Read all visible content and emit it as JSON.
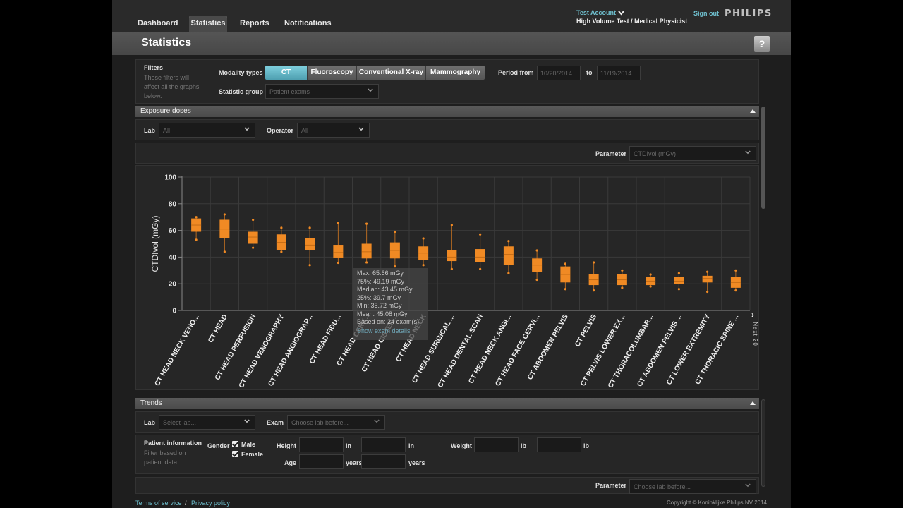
{
  "nav": {
    "tabs": [
      "Dashboard",
      "Statistics",
      "Reports",
      "Notifications"
    ],
    "account": "Test Account",
    "role": "High Volume Test / Medical Physicist",
    "signout": "Sign out",
    "logo": "PHILIPS"
  },
  "page": {
    "title": "Statistics",
    "help": "?"
  },
  "filters": {
    "title": "Filters",
    "hint": "These filters will affect all the graphs below.",
    "modality_label": "Modality types",
    "modalities": [
      "CT",
      "Fluoroscopy",
      "Conventional X-ray",
      "Mammography"
    ],
    "active_modality": "CT",
    "period_label": "Period from",
    "period_from": "10/20/2014",
    "period_to_label": "to",
    "period_to": "11/19/2014",
    "statgroup_label": "Statistic group",
    "statgroup_value": "Patient exams"
  },
  "exposure": {
    "title": "Exposure doses",
    "lab_label": "Lab",
    "lab_value": "All",
    "operator_label": "Operator",
    "operator_value": "All",
    "parameter_label": "Parameter",
    "parameter_value": "CTDIvol (mGy)"
  },
  "chart_data": {
    "type": "box",
    "ylabel": "CTDIvol (mGy)",
    "ylim": [
      0,
      100
    ],
    "yticks": [
      0,
      20,
      40,
      60,
      80,
      100
    ],
    "color": "#f08a24",
    "categories": [
      "CT HEAD NECK VENO...",
      "CT HEAD",
      "CT HEAD PERFUSION",
      "CT HEAD VENOGRAPHY",
      "CT HEAD ANGIOGRAP...",
      "CT HEAD FIDU...",
      "CT HEAD CERV...",
      "CT HEAD CISTER...",
      "CT HEAD NECK",
      "CT HEAD SURGICAL ...",
      "CT HEAD DENTAL SCAN",
      "CT HEAD NECK ANGI...",
      "CT HEAD FACE CERVI...",
      "CT ABDOMEN PELVIS",
      "CT PELVIS",
      "CT PELVIS LOWER EX...",
      "CT THORACOLUMBAR...",
      "CT ABDOMEN PELVIS ...",
      "CT LOWER EXTREMITY",
      "CT THORACIC SPINE ..."
    ],
    "boxes": [
      {
        "min": 53,
        "q1": 59,
        "median": 64,
        "q3": 69,
        "max": 70
      },
      {
        "min": 44,
        "q1": 54,
        "median": 61,
        "q3": 68,
        "max": 72
      },
      {
        "min": 47,
        "q1": 50,
        "median": 55,
        "q3": 59,
        "max": 68
      },
      {
        "min": 44,
        "q1": 45,
        "median": 51,
        "q3": 57,
        "max": 62
      },
      {
        "min": 34,
        "q1": 45,
        "median": 49,
        "q3": 54,
        "max": 62
      },
      {
        "min": 35.72,
        "q1": 39.7,
        "median": 43.45,
        "q3": 49.19,
        "max": 65.66
      },
      {
        "min": 36,
        "q1": 39,
        "median": 44,
        "q3": 50,
        "max": 65
      },
      {
        "min": 33,
        "q1": 39,
        "median": 45,
        "q3": 51,
        "max": 59
      },
      {
        "min": 34,
        "q1": 38,
        "median": 43,
        "q3": 48,
        "max": 54
      },
      {
        "min": 31,
        "q1": 37,
        "median": 40,
        "q3": 45,
        "max": 64
      },
      {
        "min": 31,
        "q1": 36,
        "median": 40,
        "q3": 46,
        "max": 57
      },
      {
        "min": 28,
        "q1": 34,
        "median": 42,
        "q3": 48,
        "max": 52
      },
      {
        "min": 23,
        "q1": 29,
        "median": 34,
        "q3": 39,
        "max": 45
      },
      {
        "min": 16,
        "q1": 21,
        "median": 27,
        "q3": 33,
        "max": 35
      },
      {
        "min": 15,
        "q1": 19,
        "median": 23,
        "q3": 27,
        "max": 36
      },
      {
        "min": 17,
        "q1": 19,
        "median": 23,
        "q3": 27,
        "max": 30
      },
      {
        "min": 18,
        "q1": 19,
        "median": 22,
        "q3": 25,
        "max": 27
      },
      {
        "min": 16,
        "q1": 20,
        "median": 22,
        "q3": 25,
        "max": 28
      },
      {
        "min": 14,
        "q1": 21,
        "median": 24,
        "q3": 26,
        "max": 29
      },
      {
        "min": 15,
        "q1": 17,
        "median": 21,
        "q3": 25,
        "max": 30
      }
    ]
  },
  "tooltip": {
    "max": "Max: 65.66 mGy",
    "q3": "75%: 49.19 mGy",
    "median": "Median: 43.45 mGy",
    "q1": "25%: 39.7 mGy",
    "min": "Min: 35.72 mGy",
    "mean": "Mean: 45.08 mGy",
    "based": "Based on: 24 exam(s)",
    "link": "Show exam details"
  },
  "next": {
    "arrow": "›",
    "label": "Next 20"
  },
  "trends": {
    "title": "Trends",
    "lab_label": "Lab",
    "lab_placeholder": "Select lab...",
    "exam_label": "Exam",
    "exam_placeholder": "Choose lab before...",
    "patient_title": "Patient information",
    "patient_hint": "Filter based on patient data",
    "gender_label": "Gender",
    "male": "Male",
    "female": "Female",
    "height_label": "Height",
    "height_unit1": "in",
    "height_unit2": "in",
    "weight_label": "Weight",
    "weight_unit1": "lb",
    "weight_unit2": "lb",
    "age_label": "Age",
    "age_unit": "years",
    "age_unit2": "years",
    "parameter_label": "Parameter",
    "parameter_placeholder": "Choose lab before..."
  },
  "footer": {
    "terms": "Terms of service",
    "sep": "/",
    "privacy": "Privacy policy",
    "copyright": "Copyright © Koninklijke Philips NV 2014"
  }
}
